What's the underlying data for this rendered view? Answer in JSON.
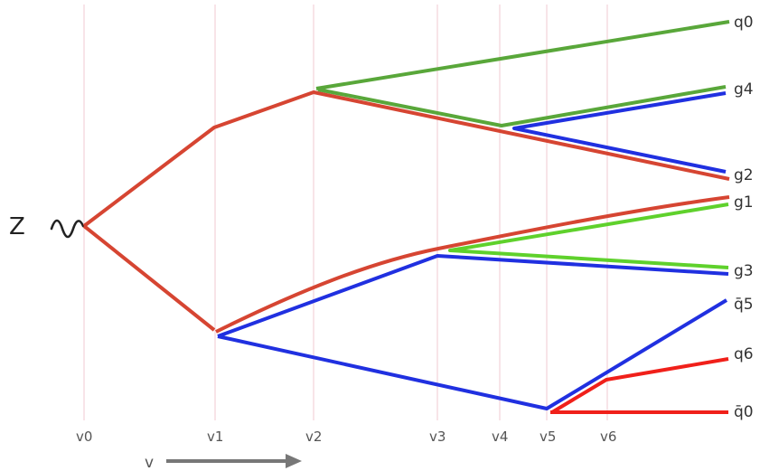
{
  "source_label": "Z",
  "axis_label": "v",
  "vertex_labels": [
    "v0",
    "v1",
    "v2",
    "v3",
    "v4",
    "v5",
    "v6"
  ],
  "endpoint_labels": {
    "q0": "q0",
    "g4": "g4",
    "g2": "g2",
    "g1": "g1",
    "g3": "g3",
    "qbar5": "q̄5",
    "q6": "q6",
    "qbar0": "q̄0"
  },
  "colors": {
    "red": "#d64532",
    "green": "#59a73a",
    "lime": "#5fd12c",
    "blue": "#2030e0",
    "bright_red": "#f0201a",
    "gridline": "#f0c8d2",
    "arrow": "#777777"
  }
}
